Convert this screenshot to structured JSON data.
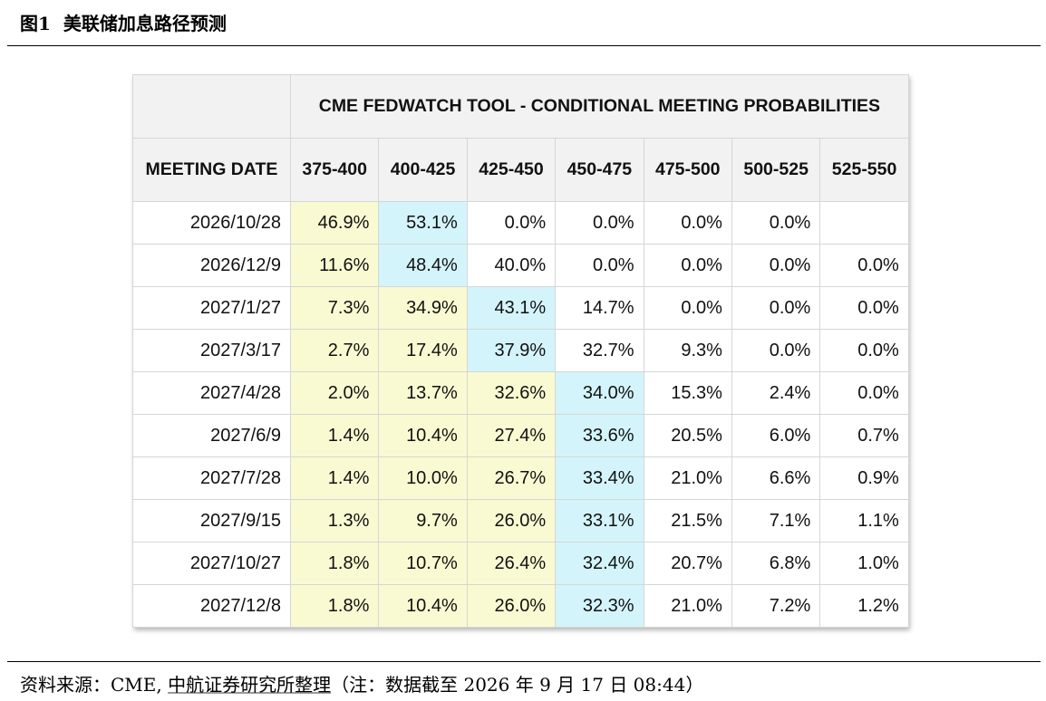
{
  "figure": {
    "number_label": "图1",
    "title": "美联储加息路径预测"
  },
  "source": {
    "prefix": "资料来源：CME, ",
    "org": "中航证券研究所整理",
    "note": "（注：数据截至 2026 年 9 月 17 日 08:44）"
  },
  "colors": {
    "highlight_yellow": "#fafad2",
    "highlight_cyan": "#d4f4fb",
    "header_bg": "#f2f2f2"
  },
  "chart_data": {
    "type": "table",
    "title": "CME FEDWATCH TOOL - CONDITIONAL MEETING PROBABILITIES",
    "row_header_label": "MEETING DATE",
    "columns": [
      "375-400",
      "400-425",
      "425-450",
      "450-475",
      "475-500",
      "500-525",
      "525-550"
    ],
    "rows": [
      {
        "date": "2026/10/28",
        "values": [
          "46.9%",
          "53.1%",
          "0.0%",
          "0.0%",
          "0.0%",
          "0.0%",
          ""
        ],
        "highlight": [
          "yellow",
          "cyan",
          "",
          "",
          "",
          "",
          ""
        ]
      },
      {
        "date": "2026/12/9",
        "values": [
          "11.6%",
          "48.4%",
          "40.0%",
          "0.0%",
          "0.0%",
          "0.0%",
          "0.0%"
        ],
        "highlight": [
          "yellow",
          "cyan",
          "",
          "",
          "",
          "",
          ""
        ]
      },
      {
        "date": "2027/1/27",
        "values": [
          "7.3%",
          "34.9%",
          "43.1%",
          "14.7%",
          "0.0%",
          "0.0%",
          "0.0%"
        ],
        "highlight": [
          "yellow",
          "yellow",
          "cyan",
          "",
          "",
          "",
          ""
        ]
      },
      {
        "date": "2027/3/17",
        "values": [
          "2.7%",
          "17.4%",
          "37.9%",
          "32.7%",
          "9.3%",
          "0.0%",
          "0.0%"
        ],
        "highlight": [
          "yellow",
          "yellow",
          "cyan",
          "",
          "",
          "",
          ""
        ]
      },
      {
        "date": "2027/4/28",
        "values": [
          "2.0%",
          "13.7%",
          "32.6%",
          "34.0%",
          "15.3%",
          "2.4%",
          "0.0%"
        ],
        "highlight": [
          "yellow",
          "yellow",
          "yellow",
          "cyan",
          "",
          "",
          ""
        ]
      },
      {
        "date": "2027/6/9",
        "values": [
          "1.4%",
          "10.4%",
          "27.4%",
          "33.6%",
          "20.5%",
          "6.0%",
          "0.7%"
        ],
        "highlight": [
          "yellow",
          "yellow",
          "yellow",
          "cyan",
          "",
          "",
          ""
        ]
      },
      {
        "date": "2027/7/28",
        "values": [
          "1.4%",
          "10.0%",
          "26.7%",
          "33.4%",
          "21.0%",
          "6.6%",
          "0.9%"
        ],
        "highlight": [
          "yellow",
          "yellow",
          "yellow",
          "cyan",
          "",
          "",
          ""
        ]
      },
      {
        "date": "2027/9/15",
        "values": [
          "1.3%",
          "9.7%",
          "26.0%",
          "33.1%",
          "21.5%",
          "7.1%",
          "1.1%"
        ],
        "highlight": [
          "yellow",
          "yellow",
          "yellow",
          "cyan",
          "",
          "",
          ""
        ]
      },
      {
        "date": "2027/10/27",
        "values": [
          "1.8%",
          "10.7%",
          "26.4%",
          "32.4%",
          "20.7%",
          "6.8%",
          "1.0%"
        ],
        "highlight": [
          "yellow",
          "yellow",
          "yellow",
          "cyan",
          "",
          "",
          ""
        ]
      },
      {
        "date": "2027/12/8",
        "values": [
          "1.8%",
          "10.4%",
          "26.0%",
          "32.3%",
          "21.0%",
          "7.2%",
          "1.2%"
        ],
        "highlight": [
          "yellow",
          "yellow",
          "yellow",
          "cyan",
          "",
          "",
          ""
        ]
      }
    ]
  }
}
